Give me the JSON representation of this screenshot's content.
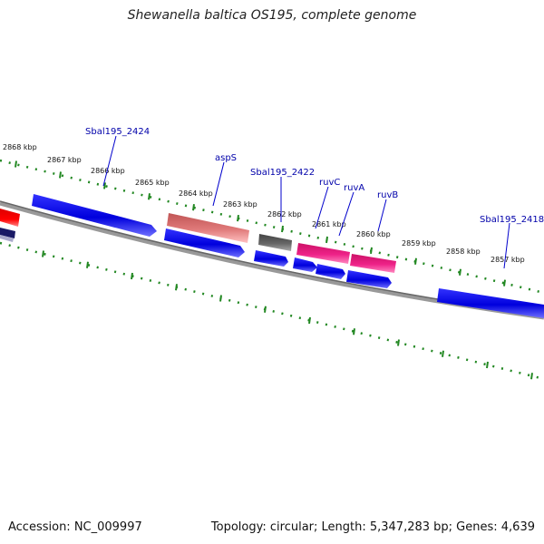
{
  "title": "Shewanella baltica OS195, complete genome",
  "footer": {
    "accession": "Accession: NC_009997",
    "summary": "Topology: circular; Length: 5,347,283 bp; Genes: 4,639"
  },
  "ticks": [
    "2868 kbp",
    "2867 kbp",
    "2866 kbp",
    "2865 kbp",
    "2864 kbp",
    "2863 kbp",
    "2862 kbp",
    "2861 kbp",
    "2860 kbp",
    "2859 kbp",
    "2858 kbp",
    "2857 kbp"
  ],
  "gene_labels": [
    "Sbal195_2424",
    "aspS",
    "Sbal195_2422",
    "ruvC",
    "ruvA",
    "ruvB",
    "Sbal195_2418"
  ],
  "colors": {
    "cds": "#0000ee",
    "trna_rrna": "#ee4488",
    "aspS": "#e07878",
    "pseudo": "#666666",
    "other": "#ee0000",
    "backbone": "#888888",
    "tick": "#228822",
    "label": "#0000aa"
  }
}
